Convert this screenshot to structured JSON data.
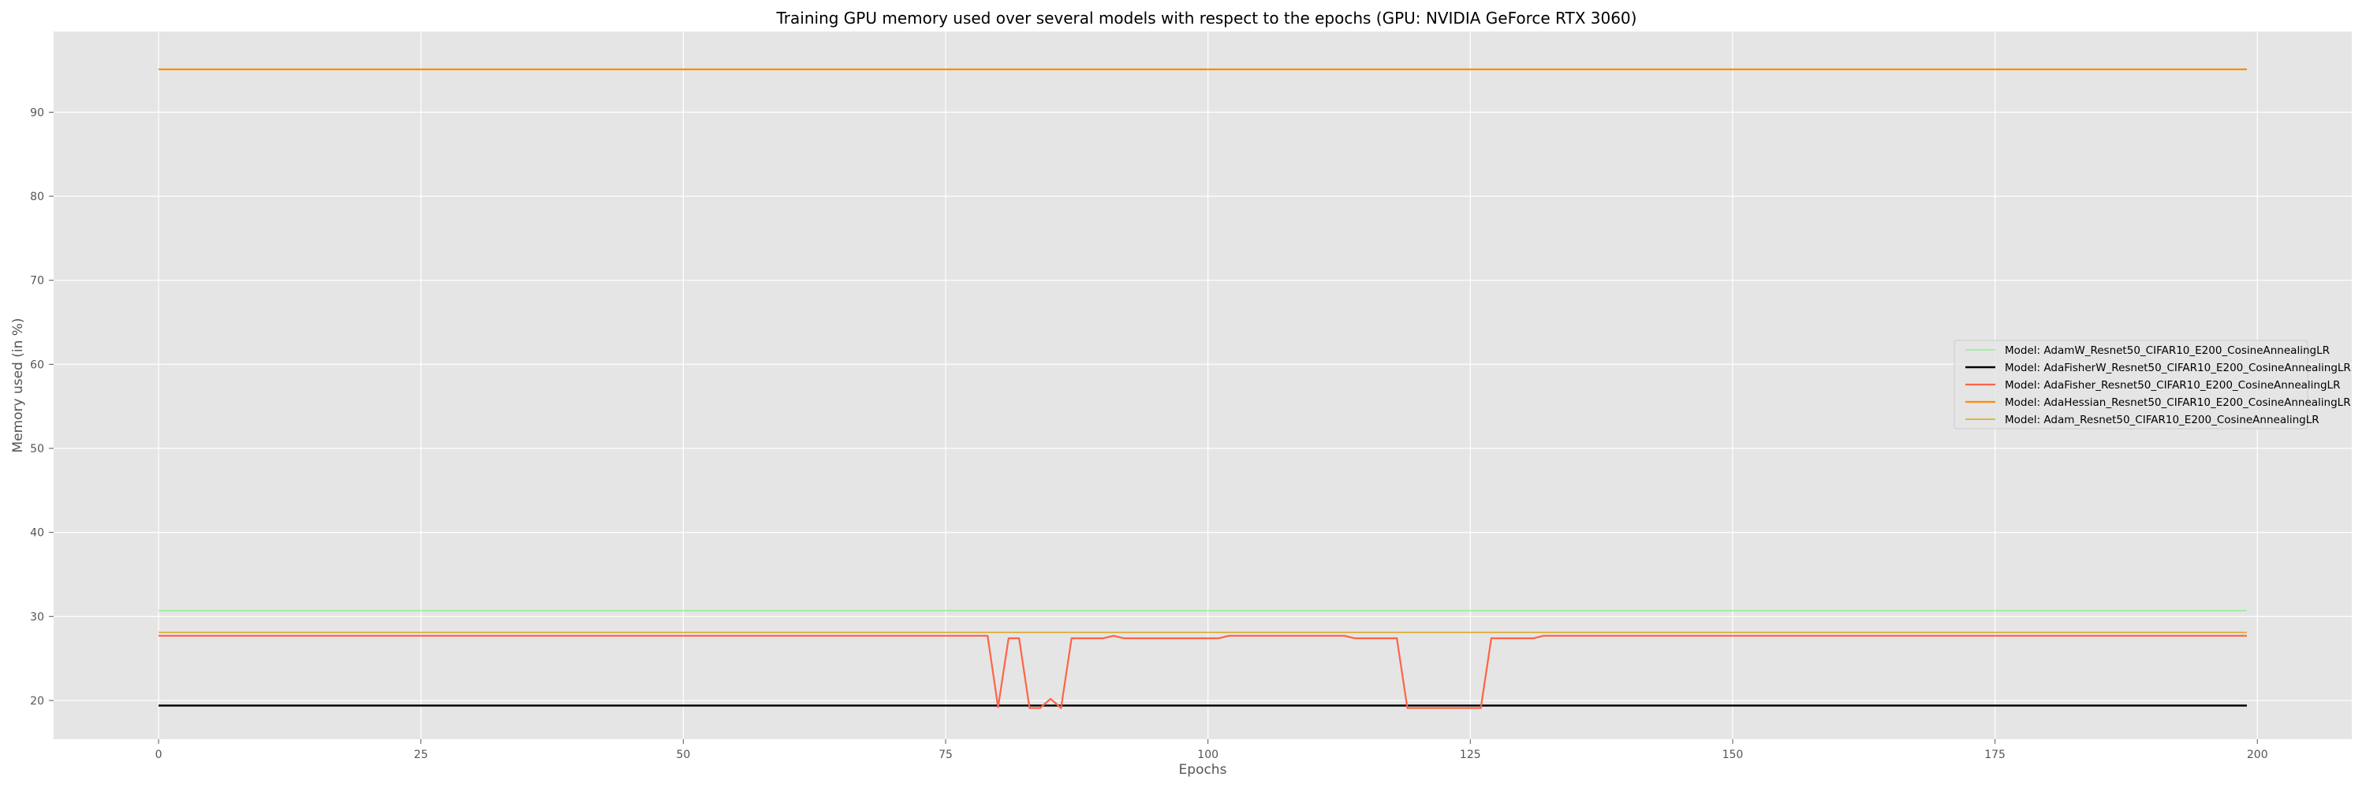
{
  "chart_data": {
    "type": "line",
    "title": "Training GPU memory used over several models with respect to the epochs (GPU: NVIDIA GeForce RTX 3060)",
    "xlabel": "Epochs",
    "ylabel": "Memory used (in %)",
    "xlim": [
      -10,
      209
    ],
    "ylim": [
      15.4,
      99.6
    ],
    "xticks": [
      0,
      25,
      50,
      75,
      100,
      125,
      150,
      175,
      200
    ],
    "yticks": [
      20,
      30,
      40,
      50,
      60,
      70,
      80,
      90
    ],
    "grid": true,
    "legend_position": "center-right",
    "colors": {
      "plot_background": "#e5e5e5",
      "grid": "#ffffff"
    },
    "series": [
      {
        "name": "Model: AdamW_Resnet50_CIFAR10_E200_CosineAnnealingLR",
        "color": "#90ee90",
        "stroke": 1.5,
        "x": [
          0,
          199
        ],
        "y": [
          30.7,
          30.7
        ]
      },
      {
        "name": "Model: AdaFisherW_Resnet50_CIFAR10_E200_CosineAnnealingLR",
        "color": "#000000",
        "stroke": 2.5,
        "x": [
          0,
          199
        ],
        "y": [
          19.4,
          19.4
        ]
      },
      {
        "name": "Model: AdaFisher_Resnet50_CIFAR10_E200_CosineAnnealingLR",
        "color": "#ff6347",
        "stroke": 2.2,
        "x": [
          0,
          79,
          80,
          81,
          82,
          83,
          84,
          85,
          86,
          87,
          90,
          91,
          92,
          101,
          102,
          113,
          114,
          118,
          119,
          126,
          127,
          131,
          132,
          199
        ],
        "y": [
          27.7,
          27.7,
          19.2,
          27.4,
          27.4,
          19.1,
          19.1,
          20.2,
          19.1,
          27.4,
          27.4,
          27.7,
          27.4,
          27.4,
          27.7,
          27.7,
          27.4,
          27.4,
          19.1,
          19.1,
          27.4,
          27.4,
          27.7,
          27.7
        ]
      },
      {
        "name": "Model: AdaHessian_Resnet50_CIFAR10_E200_CosineAnnealingLR",
        "color": "#ff8c00",
        "stroke": 2.2,
        "x": [
          0,
          199
        ],
        "y": [
          95.1,
          95.1
        ]
      },
      {
        "name": "Model: Adam_Resnet50_CIFAR10_E200_CosineAnnealingLR",
        "color": "#daa520",
        "stroke": 1.5,
        "x": [
          0,
          199
        ],
        "y": [
          28.1,
          28.1
        ]
      }
    ]
  }
}
